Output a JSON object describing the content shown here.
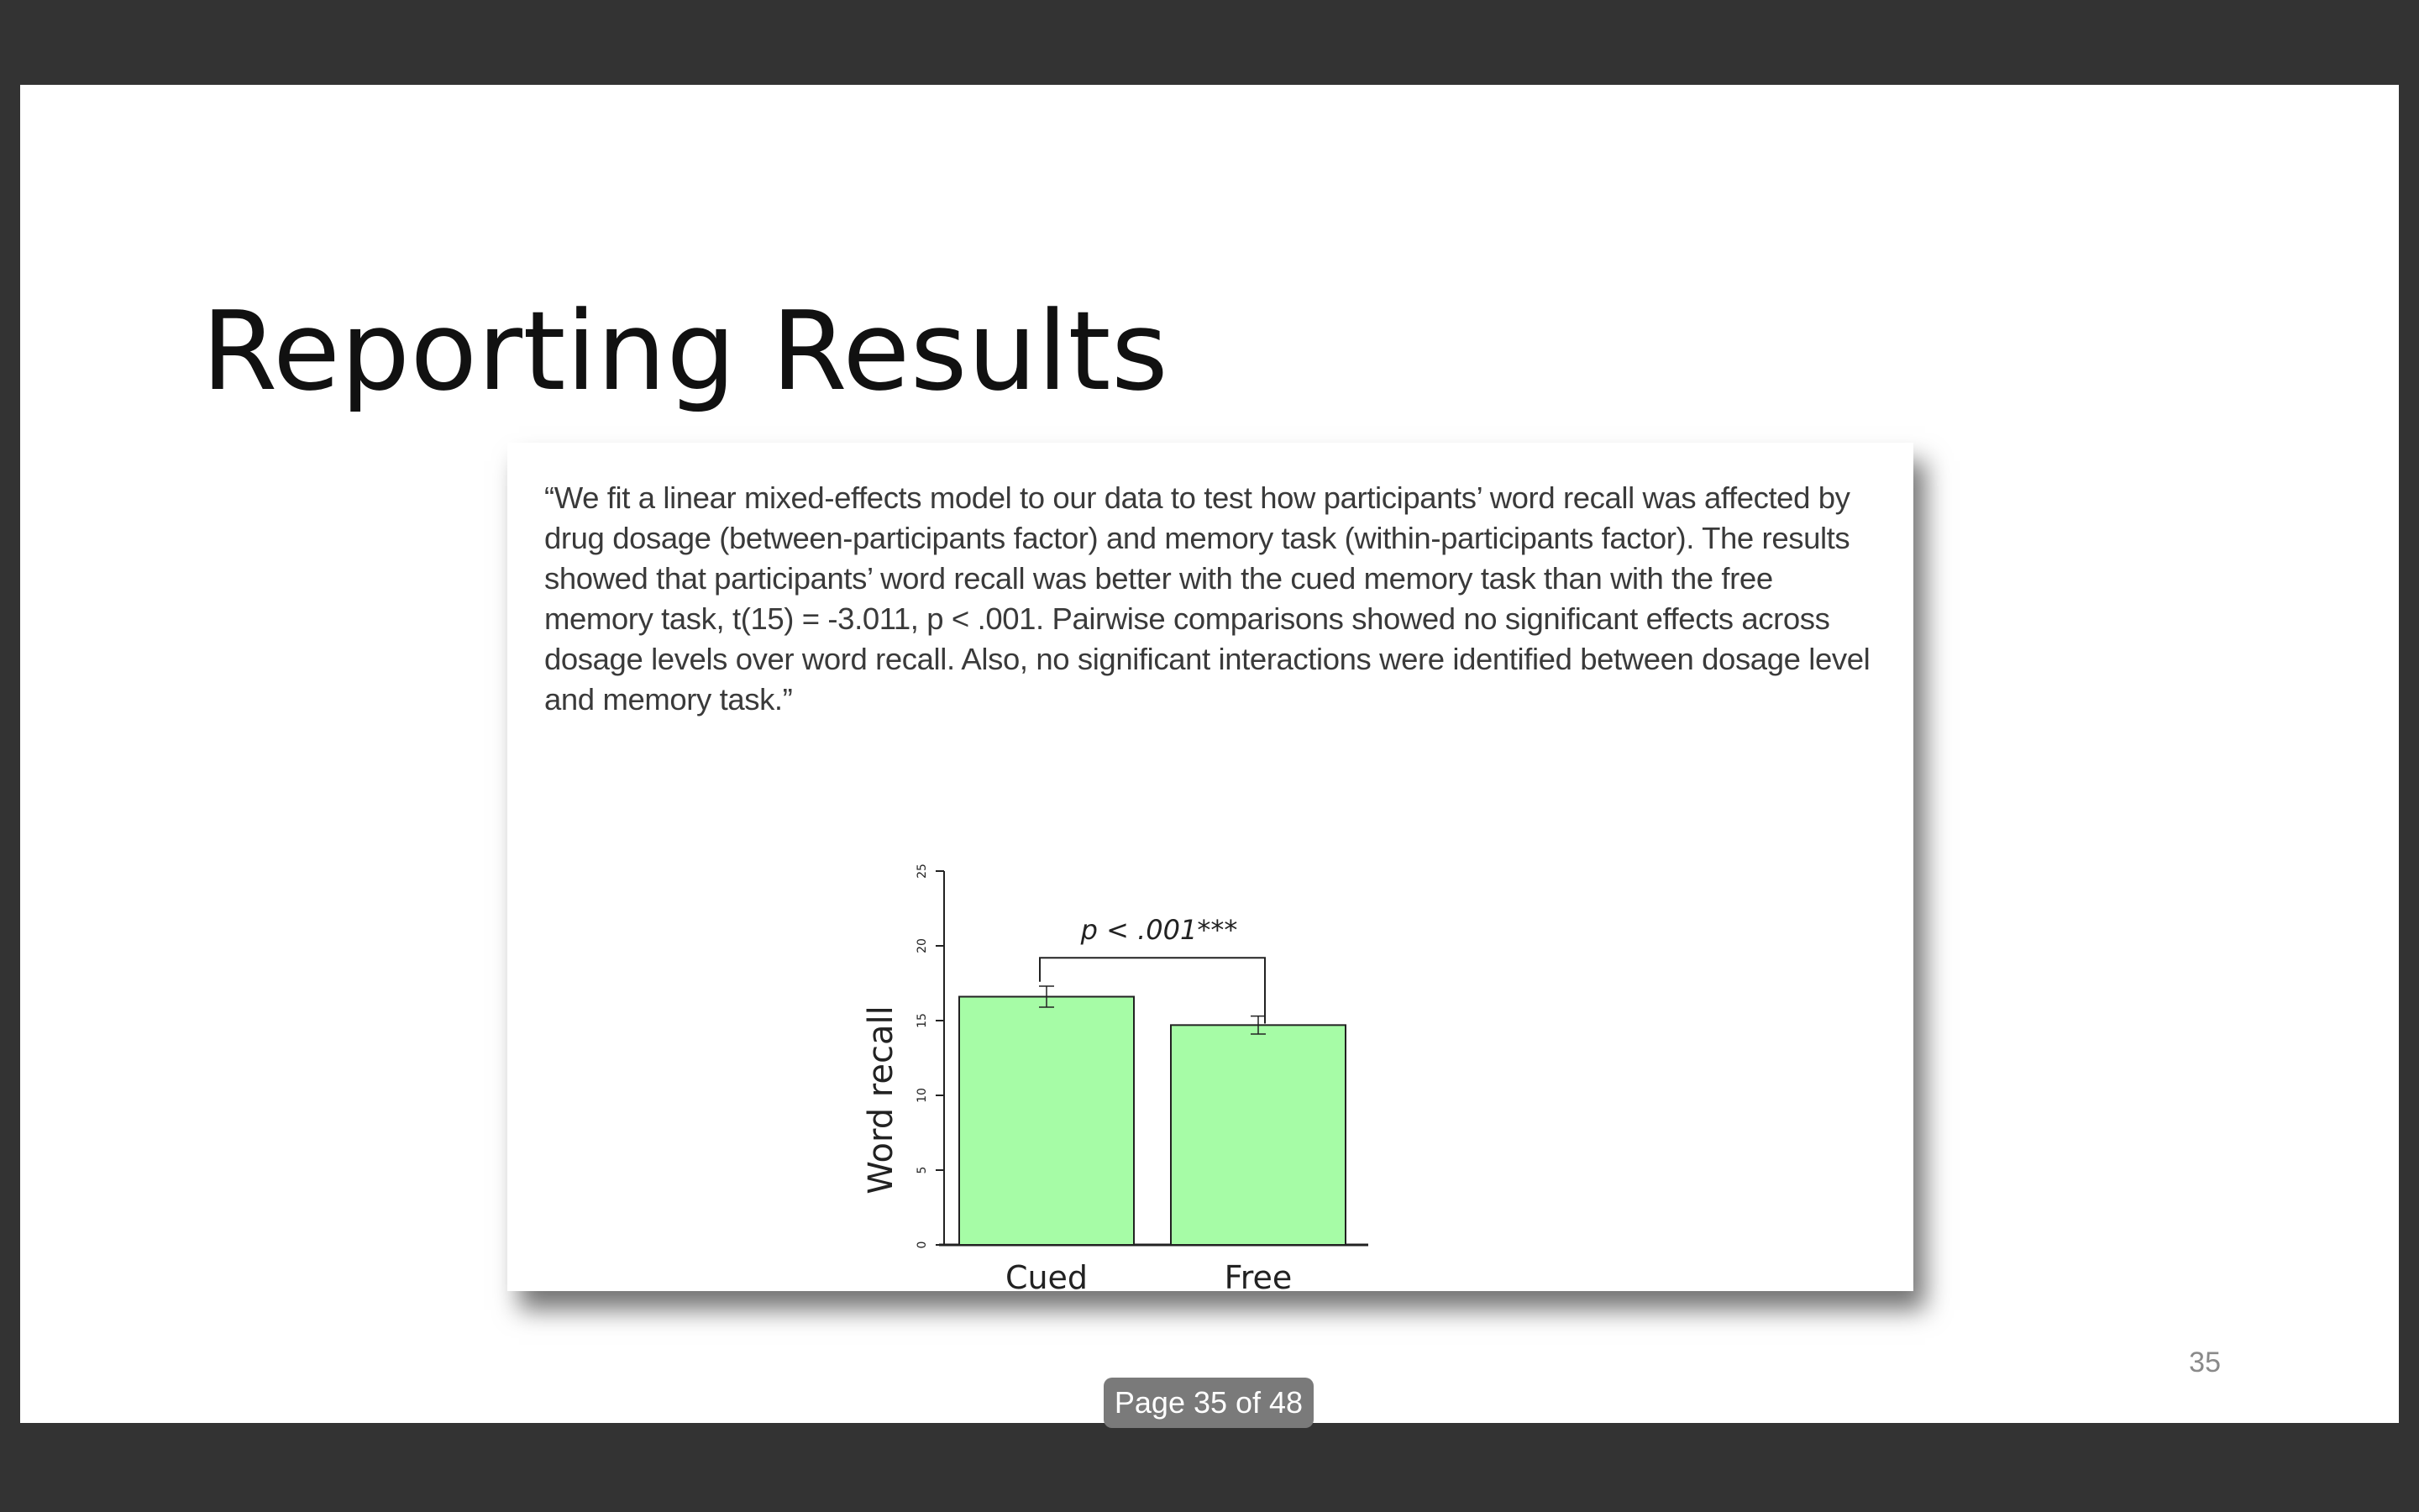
{
  "slide": {
    "title": "Reporting Results",
    "quote": "“We fit a linear mixed-effects model to our data to test how participants’ word recall was affected by drug dosage (between-participants factor) and memory task (within-participants factor). The results showed that participants’ word recall was better with the cued memory task than with the free memory task, t(15) = -3.011, p < .001. Pairwise comparisons showed no significant effects across dosage levels over word recall. Also, no significant interactions were identified between dosage level and memory task.”",
    "slide_number": "35"
  },
  "viewer": {
    "page_indicator": "Page 35 of 48"
  },
  "chart_data": {
    "type": "bar",
    "categories": [
      "Cued",
      "Free"
    ],
    "values": [
      16.6,
      14.7
    ],
    "error": [
      0.7,
      0.6
    ],
    "ylabel": "Word recall",
    "xlabel": "",
    "ylim": [
      0,
      25
    ],
    "yticks": [
      "0",
      "5",
      "10",
      "15",
      "20",
      "25"
    ],
    "annotation": "p < .001***",
    "bar_color": "#a6fca6",
    "grid": false
  }
}
